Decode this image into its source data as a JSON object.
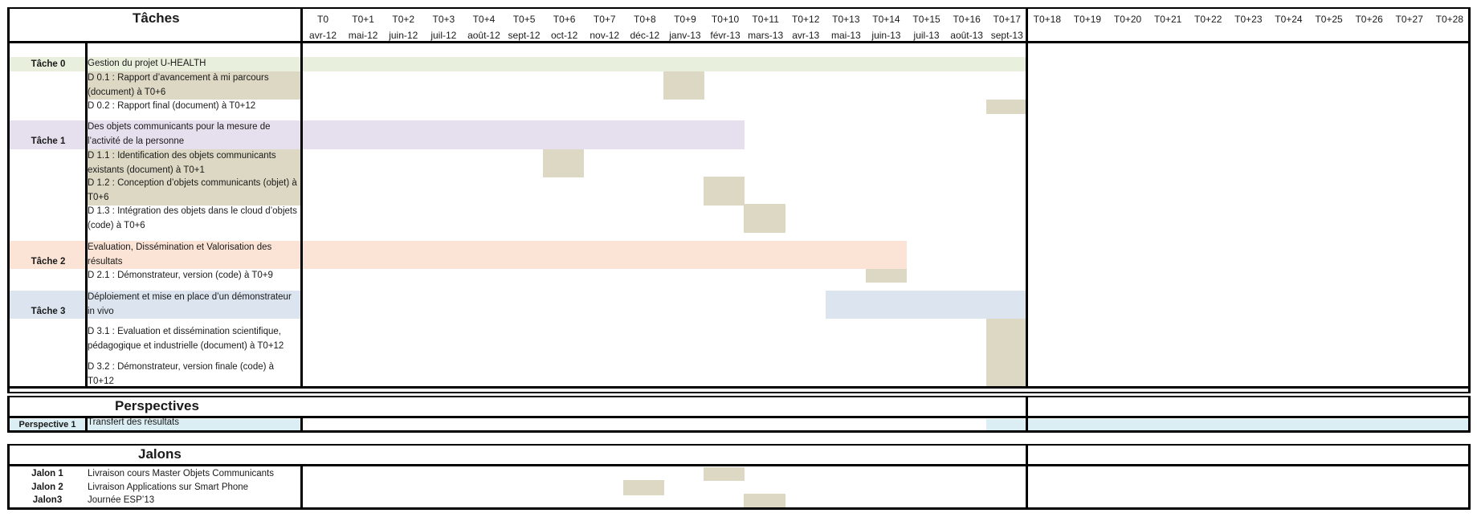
{
  "colors": {
    "task0": "#e8efdd",
    "task1": "#e6e0ee",
    "task2": "#fbe4d6",
    "task3": "#dbe4ef",
    "perspective": "#daeef3",
    "deliverable": "#ddd8c4"
  },
  "header": {
    "title": "Tâches",
    "months": [
      {
        "code": "T0",
        "date": "avr-12"
      },
      {
        "code": "T0+1",
        "date": "mai-12"
      },
      {
        "code": "T0+2",
        "date": "juin-12"
      },
      {
        "code": "T0+3",
        "date": "juil-12"
      },
      {
        "code": "T0+4",
        "date": "août-12"
      },
      {
        "code": "T0+5",
        "date": "sept-12"
      },
      {
        "code": "T0+6",
        "date": "oct-12"
      },
      {
        "code": "T0+7",
        "date": "nov-12"
      },
      {
        "code": "T0+8",
        "date": "déc-12"
      },
      {
        "code": "T0+9",
        "date": "janv-13"
      },
      {
        "code": "T0+10",
        "date": "févr-13"
      },
      {
        "code": "T0+11",
        "date": "mars-13"
      },
      {
        "code": "T0+12",
        "date": "avr-13"
      },
      {
        "code": "T0+13",
        "date": "mai-13"
      },
      {
        "code": "T0+14",
        "date": "juin-13"
      },
      {
        "code": "T0+15",
        "date": "juil-13"
      },
      {
        "code": "T0+16",
        "date": "août-13"
      },
      {
        "code": "T0+17",
        "date": "sept-13"
      },
      {
        "code": "T0+18",
        "date": ""
      },
      {
        "code": "T0+19",
        "date": ""
      },
      {
        "code": "T0+20",
        "date": ""
      },
      {
        "code": "T0+21",
        "date": ""
      },
      {
        "code": "T0+22",
        "date": ""
      },
      {
        "code": "T0+23",
        "date": ""
      },
      {
        "code": "T0+24",
        "date": ""
      },
      {
        "code": "T0+25",
        "date": ""
      },
      {
        "code": "T0+26",
        "date": ""
      },
      {
        "code": "T0+27",
        "date": ""
      },
      {
        "code": "T0+28",
        "date": ""
      }
    ]
  },
  "tasks": {
    "t0": {
      "label": "Tâche 0",
      "title": "Gestion du projet U-HEALTH",
      "d1": "D 0.1 : Rapport d’avancement à mi parcours (document) à T0+6",
      "d2": "D 0.2 : Rapport final (document) à T0+12"
    },
    "t1": {
      "label": "Tâche 1",
      "title": "Des objets communicants pour la mesure de l’activité de la personne",
      "d1": "D 1.1 : Identification des objets communicants existants (document) à T0+1",
      "d2": "D 1.2 : Conception d’objets communicants (objet) à T0+6",
      "d3": "D 1.3 : Intégration des objets dans le cloud d’objets (code) à T0+6"
    },
    "t2": {
      "label": "Tâche 2",
      "title": "Evaluation, Dissémination et Valorisation des résultats",
      "d1": "D 2.1 : Démonstrateur, version (code) à T0+9"
    },
    "t3": {
      "label": "Tâche 3",
      "title": "Déploiement et mise en place d’un démonstrateur in vivo",
      "d1": "D 3.1 : Evaluation et dissémination scientifique, pédagogique et industrielle (document) à T0+12",
      "d2": "D 3.2 : Démonstrateur, version finale (code) à T0+12"
    }
  },
  "perspectives": {
    "title": "Perspectives",
    "p1": {
      "label": "Perspective 1",
      "title": "Transfert  des résultats"
    }
  },
  "jalons": {
    "title": "Jalons",
    "items": [
      {
        "label": "Jalon 1",
        "title": "Livraison cours Master Objets Communicants"
      },
      {
        "label": "Jalon 2",
        "title": "Livraison Applications sur Smart Phone"
      },
      {
        "label": "Jalon3",
        "title": "Journée ESP’13"
      }
    ]
  }
}
